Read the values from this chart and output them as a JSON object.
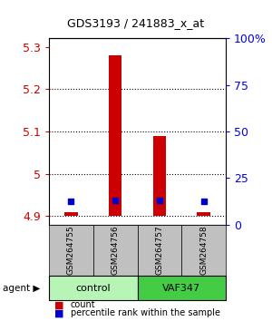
{
  "title": "GDS3193 / 241883_x_at",
  "samples": [
    "GSM264755",
    "GSM264756",
    "GSM264757",
    "GSM264758"
  ],
  "groups": [
    "control",
    "control",
    "VAF347",
    "VAF347"
  ],
  "group_colors": {
    "control": "#90EE90",
    "VAF347": "#00CC00"
  },
  "count_values": [
    4.91,
    5.28,
    5.09,
    4.91
  ],
  "percentile_values": [
    4.935,
    4.937,
    4.937,
    4.935
  ],
  "base_value": 4.9,
  "ylim_left": [
    4.88,
    5.32
  ],
  "ylim_right": [
    0,
    100
  ],
  "yticks_left": [
    4.9,
    5.0,
    5.1,
    5.2,
    5.3
  ],
  "yticks_right": [
    0,
    25,
    50,
    75,
    100
  ],
  "ytick_labels_left": [
    "4.9",
    "5",
    "5.1",
    "5.2",
    "5.3"
  ],
  "ytick_labels_right": [
    "0",
    "25",
    "50",
    "75",
    "100%"
  ],
  "bar_width": 0.3,
  "count_color": "#CC0000",
  "percentile_color": "#0000CC",
  "grid_color": "#000000",
  "bg_color": "#ffffff",
  "sample_box_color": "#C0C0C0",
  "group_label_control": "control",
  "group_label_vaf": "VAF347",
  "agent_label": "agent"
}
